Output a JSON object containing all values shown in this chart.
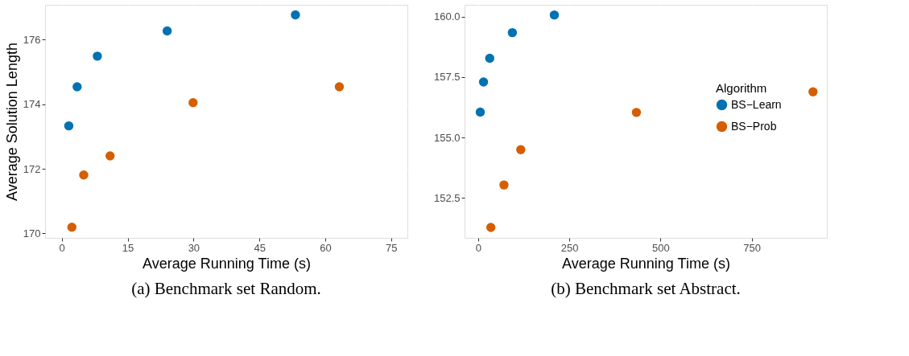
{
  "chart_data": [
    {
      "type": "scatter",
      "title": "(a) Benchmark set Random.",
      "xlabel": "Average Running Time (s)",
      "ylabel": "Average Solution Length",
      "xlim": [
        -3.8,
        78.7
      ],
      "ylim": [
        169.86,
        177.08
      ],
      "xticks": [
        0,
        15,
        30,
        45,
        60,
        75
      ],
      "yticks": [
        170,
        172,
        174,
        176
      ],
      "grid": true,
      "legend": false,
      "marker": "circle",
      "series": [
        {
          "color": "#0072b2",
          "x": [
            1.6,
            3.5,
            8.1,
            24.0,
            53.2
          ],
          "values": [
            173.33,
            174.54,
            175.49,
            176.27,
            176.77
          ]
        },
        {
          "color": "#d55e00",
          "x": [
            2.3,
            5.0,
            11.0,
            29.9,
            63.2
          ],
          "values": [
            170.19,
            171.81,
            172.4,
            174.05,
            174.54
          ]
        }
      ]
    },
    {
      "type": "scatter",
      "title": "(b) Benchmark set Abstract.",
      "xlabel": "Average Running Time (s)",
      "legend_title": "Algorithm",
      "xlim": [
        -37,
        956
      ],
      "ylim": [
        150.85,
        160.49
      ],
      "xticks": [
        0,
        250,
        500,
        750
      ],
      "yticks": [
        {
          "value": 152.5,
          "label": "152.5"
        },
        {
          "value": 155,
          "label": "155.0"
        },
        {
          "value": 157.5,
          "label": "157.5"
        },
        {
          "value": 160,
          "label": "160.0"
        }
      ],
      "grid": true,
      "legend": "right",
      "marker": "circle",
      "series": [
        {
          "name": "BS−Learn",
          "color": "#0072b2",
          "x": [
            6,
            15,
            32,
            94,
            209
          ],
          "values": [
            156.05,
            157.3,
            158.28,
            159.34,
            160.07
          ]
        },
        {
          "name": "BS−Prob",
          "color": "#d55e00",
          "x": [
            35,
            71,
            117,
            434,
            918
          ],
          "values": [
            151.28,
            153.04,
            154.5,
            156.04,
            156.89
          ]
        }
      ]
    }
  ]
}
